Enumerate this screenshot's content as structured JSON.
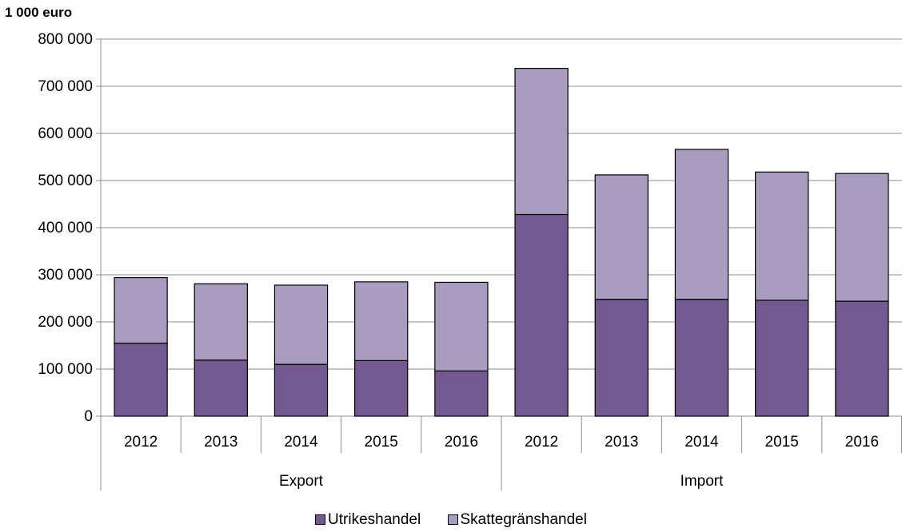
{
  "chart_data": {
    "type": "bar",
    "stacked": true,
    "unit_label": "1 000 euro",
    "groups": [
      {
        "label": "Export",
        "categories": [
          "2012",
          "2013",
          "2014",
          "2015",
          "2016"
        ]
      },
      {
        "label": "Import",
        "categories": [
          "2012",
          "2013",
          "2014",
          "2015",
          "2016"
        ]
      }
    ],
    "series": [
      {
        "name": "Utrikeshandel",
        "color": "#725a91",
        "values": [
          155000,
          119000,
          110000,
          118000,
          96000,
          428000,
          248000,
          248000,
          246000,
          244000
        ]
      },
      {
        "name": "Skattegränshandel",
        "color": "#a99dbf",
        "values": [
          139000,
          162000,
          168000,
          167000,
          188000,
          310000,
          264000,
          318000,
          272000,
          271000
        ]
      }
    ],
    "y_ticks": [
      "0",
      "100 000",
      "200 000",
      "300 000",
      "400 000",
      "500 000",
      "600 000",
      "700 000",
      "800 000"
    ],
    "ylim": [
      0,
      800000
    ],
    "grid": true,
    "legend_position": "bottom"
  }
}
